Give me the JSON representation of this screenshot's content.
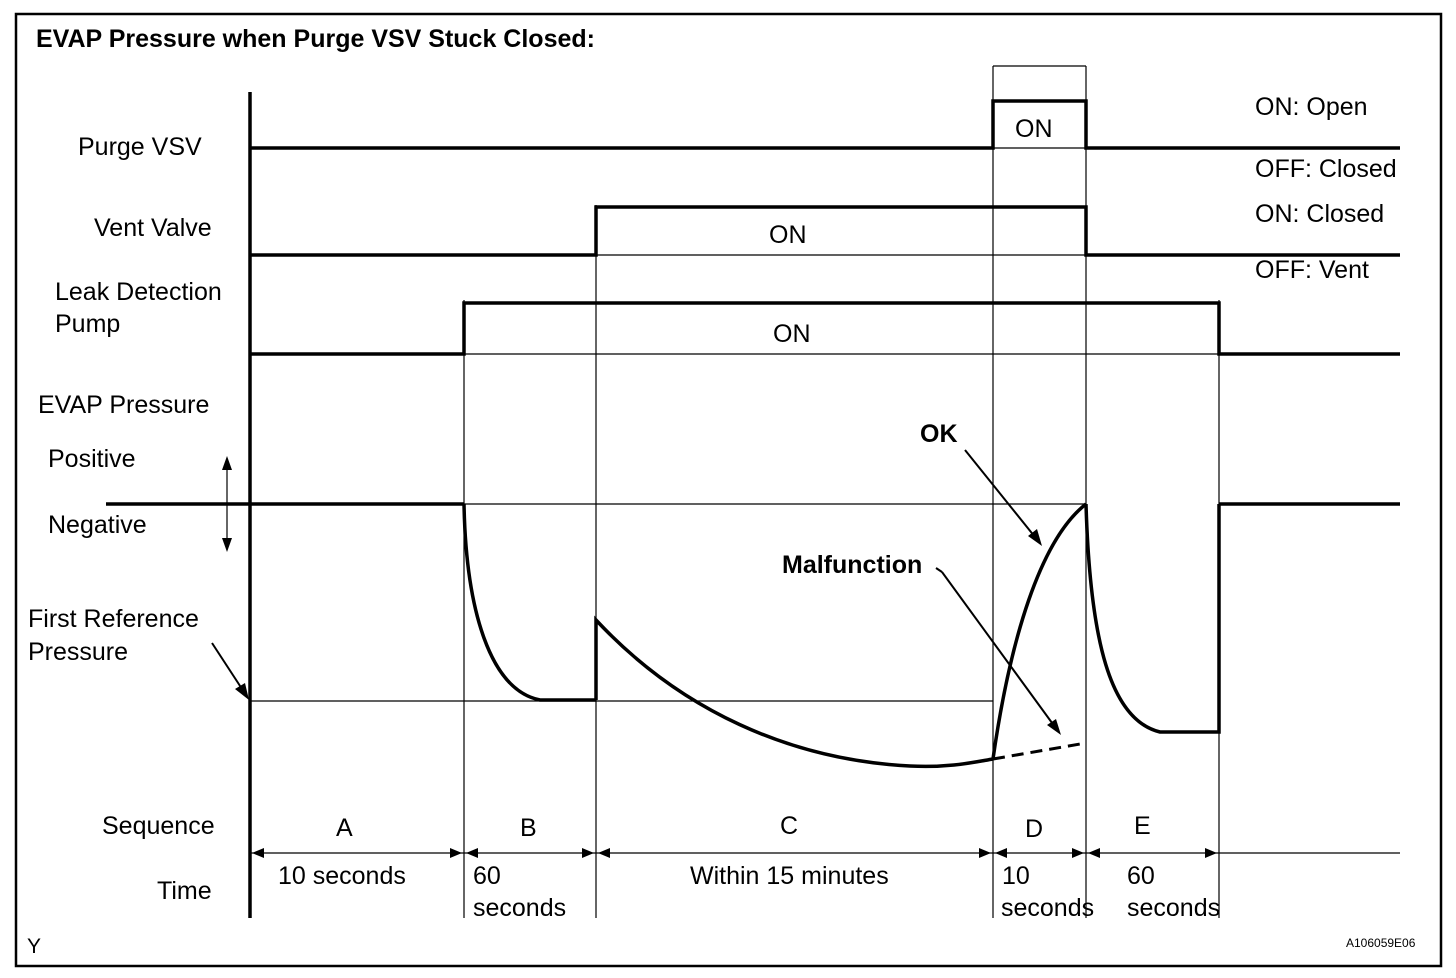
{
  "title": "EVAP Pressure when Purge VSV Stuck Closed:",
  "rows": {
    "purge_vsv": "Purge VSV",
    "vent_valve": "Vent Valve",
    "leak_pump_line1": "Leak Detection",
    "leak_pump_line2": "Pump",
    "evap_pressure": "EVAP Pressure",
    "positive": "Positive",
    "negative": "Negative",
    "first_ref_line1": "First Reference",
    "first_ref_line2": "Pressure",
    "sequence": "Sequence",
    "time": "Time"
  },
  "state_labels": {
    "purge_on": "ON: Open",
    "purge_off": "OFF: Closed",
    "vent_on": "ON: Closed",
    "vent_off": "OFF: Vent"
  },
  "on_labels": {
    "purge": "ON",
    "vent": "ON",
    "pump": "ON"
  },
  "annotations": {
    "ok": "OK",
    "malfunction": "Malfunction"
  },
  "sequence": [
    {
      "id": "A",
      "time_line1": "10 seconds",
      "time_line2": ""
    },
    {
      "id": "B",
      "time_line1": "60",
      "time_line2": "seconds"
    },
    {
      "id": "C",
      "time_line1": "Within 15 minutes",
      "time_line2": ""
    },
    {
      "id": "D",
      "time_line1": "10",
      "time_line2": "seconds"
    },
    {
      "id": "E",
      "time_line1": "60",
      "time_line2": "seconds"
    }
  ],
  "corner_left": "Y",
  "figure_id": "A106059E06"
}
